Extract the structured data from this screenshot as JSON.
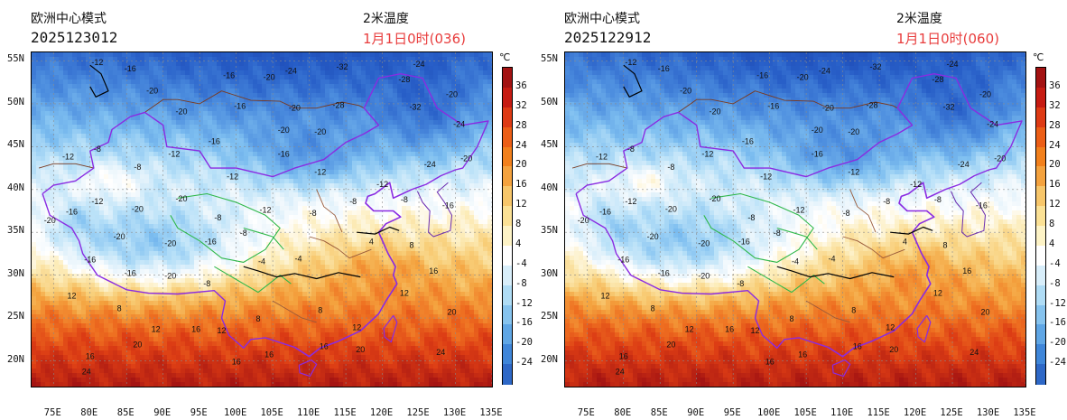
{
  "panels": [
    {
      "id": "left",
      "model": "欧洲中心模式",
      "run_time": "2025123012",
      "variable": "2米温度",
      "valid_time": "1月1日0时(036)"
    },
    {
      "id": "right",
      "model": "欧洲中心模式",
      "run_time": "2025122912",
      "variable": "2米温度",
      "valid_time": "1月1日0时(060)"
    }
  ],
  "axes": {
    "lat_ticks": [
      "55N",
      "50N",
      "45N",
      "40N",
      "35N",
      "30N",
      "25N",
      "20N"
    ],
    "lon_ticks": [
      "75E",
      "80E",
      "85E",
      "90E",
      "95E",
      "100E",
      "105E",
      "110E",
      "115E",
      "120E",
      "125E",
      "130E",
      "135E"
    ]
  },
  "colorbar": {
    "unit": "℃",
    "labels": [
      "36",
      "32",
      "28",
      "24",
      "20",
      "16",
      "12",
      "8",
      "4",
      "-4",
      "-8",
      "-12",
      "-16",
      "-20",
      "-24"
    ],
    "colors": [
      "#a31212",
      "#c61b12",
      "#de3a14",
      "#ec5e16",
      "#f2801c",
      "#f4a23e",
      "#f7c66a",
      "#fbe195",
      "#fdf3c6",
      "#ffffff",
      "#d8eefa",
      "#afdcf5",
      "#86c3ee",
      "#5fa6e5",
      "#3f86d9",
      "#2e68c7"
    ]
  },
  "contour_labels": [
    {
      "lon": 81,
      "lat": 54.5,
      "text": "-12"
    },
    {
      "lon": 85.5,
      "lat": 53.8,
      "text": "-16"
    },
    {
      "lon": 88.5,
      "lat": 51.2,
      "text": "-20"
    },
    {
      "lon": 92.5,
      "lat": 48.8,
      "text": "-20"
    },
    {
      "lon": 99,
      "lat": 53,
      "text": "-16"
    },
    {
      "lon": 104.5,
      "lat": 52.8,
      "text": "-20"
    },
    {
      "lon": 107.5,
      "lat": 53.5,
      "text": "-24"
    },
    {
      "lon": 114.5,
      "lat": 54,
      "text": "-32"
    },
    {
      "lon": 123,
      "lat": 52.5,
      "text": "-28"
    },
    {
      "lon": 125,
      "lat": 54.3,
      "text": "-24"
    },
    {
      "lon": 129.5,
      "lat": 50.8,
      "text": "-20"
    },
    {
      "lon": 130.5,
      "lat": 47.3,
      "text": "-24"
    },
    {
      "lon": 124.5,
      "lat": 49.3,
      "text": "-32"
    },
    {
      "lon": 114,
      "lat": 49.5,
      "text": "-28"
    },
    {
      "lon": 108,
      "lat": 49.2,
      "text": "-20"
    },
    {
      "lon": 100.5,
      "lat": 49.4,
      "text": "-16"
    },
    {
      "lon": 106.5,
      "lat": 46.6,
      "text": "-20"
    },
    {
      "lon": 111.5,
      "lat": 46.4,
      "text": "-20"
    },
    {
      "lon": 97,
      "lat": 45.3,
      "text": "-16"
    },
    {
      "lon": 91.5,
      "lat": 43.8,
      "text": "-12"
    },
    {
      "lon": 81,
      "lat": 44.4,
      "text": "-8"
    },
    {
      "lon": 77,
      "lat": 43.5,
      "text": "-12"
    },
    {
      "lon": 86.5,
      "lat": 42.3,
      "text": "-8"
    },
    {
      "lon": 99.5,
      "lat": 41.2,
      "text": "-12"
    },
    {
      "lon": 106.5,
      "lat": 43.8,
      "text": "-16"
    },
    {
      "lon": 111.5,
      "lat": 41.7,
      "text": "-12"
    },
    {
      "lon": 120,
      "lat": 40.3,
      "text": "-12"
    },
    {
      "lon": 126.5,
      "lat": 42.6,
      "text": "-24"
    },
    {
      "lon": 131.5,
      "lat": 43.3,
      "text": "-20"
    },
    {
      "lon": 129,
      "lat": 37.8,
      "text": "-16"
    },
    {
      "lon": 123,
      "lat": 38.5,
      "text": "-8"
    },
    {
      "lon": 116,
      "lat": 38.3,
      "text": "-8"
    },
    {
      "lon": 110.5,
      "lat": 36.9,
      "text": "-8"
    },
    {
      "lon": 104,
      "lat": 37.3,
      "text": "-12"
    },
    {
      "lon": 97.5,
      "lat": 36.4,
      "text": "-8"
    },
    {
      "lon": 92.5,
      "lat": 38.6,
      "text": "-20"
    },
    {
      "lon": 86.5,
      "lat": 37.4,
      "text": "-20"
    },
    {
      "lon": 81,
      "lat": 38.3,
      "text": "-12"
    },
    {
      "lon": 77.5,
      "lat": 37.1,
      "text": "-16"
    },
    {
      "lon": 74.5,
      "lat": 36.1,
      "text": "-20"
    },
    {
      "lon": 84,
      "lat": 34.2,
      "text": "-20"
    },
    {
      "lon": 91,
      "lat": 33.4,
      "text": "-20"
    },
    {
      "lon": 96.5,
      "lat": 33.6,
      "text": "-16"
    },
    {
      "lon": 101,
      "lat": 34.6,
      "text": "-8"
    },
    {
      "lon": 103.5,
      "lat": 31.3,
      "text": "-4"
    },
    {
      "lon": 108.5,
      "lat": 31.6,
      "text": "-4"
    },
    {
      "lon": 80,
      "lat": 31.5,
      "text": "-16"
    },
    {
      "lon": 85.5,
      "lat": 29.9,
      "text": "-16"
    },
    {
      "lon": 91,
      "lat": 29.6,
      "text": "-20"
    },
    {
      "lon": 96,
      "lat": 28.7,
      "text": "-8"
    },
    {
      "lon": 77.5,
      "lat": 27.3,
      "text": "12"
    },
    {
      "lon": 84,
      "lat": 25.8,
      "text": "8"
    },
    {
      "lon": 89,
      "lat": 23.4,
      "text": "12"
    },
    {
      "lon": 94.5,
      "lat": 23.4,
      "text": "16"
    },
    {
      "lon": 98,
      "lat": 23.2,
      "text": "12"
    },
    {
      "lon": 103,
      "lat": 24.6,
      "text": "8"
    },
    {
      "lon": 111.5,
      "lat": 25.6,
      "text": "8"
    },
    {
      "lon": 116.5,
      "lat": 23.6,
      "text": "12"
    },
    {
      "lon": 123,
      "lat": 27.6,
      "text": "12"
    },
    {
      "lon": 127,
      "lat": 30.2,
      "text": "16"
    },
    {
      "lon": 129.5,
      "lat": 25.4,
      "text": "20"
    },
    {
      "lon": 112,
      "lat": 21.4,
      "text": "16"
    },
    {
      "lon": 117,
      "lat": 21,
      "text": "20"
    },
    {
      "lon": 128,
      "lat": 20.7,
      "text": "24"
    },
    {
      "lon": 86.5,
      "lat": 21.6,
      "text": "20"
    },
    {
      "lon": 80,
      "lat": 20.2,
      "text": "16"
    },
    {
      "lon": 100,
      "lat": 19.6,
      "text": "16"
    },
    {
      "lon": 104.5,
      "lat": 20.4,
      "text": "16"
    },
    {
      "lon": 79.5,
      "lat": 18.4,
      "text": "24"
    },
    {
      "lon": 124,
      "lat": 33.2,
      "text": "8"
    },
    {
      "lon": 118.5,
      "lat": 33.6,
      "text": "4"
    }
  ]
}
